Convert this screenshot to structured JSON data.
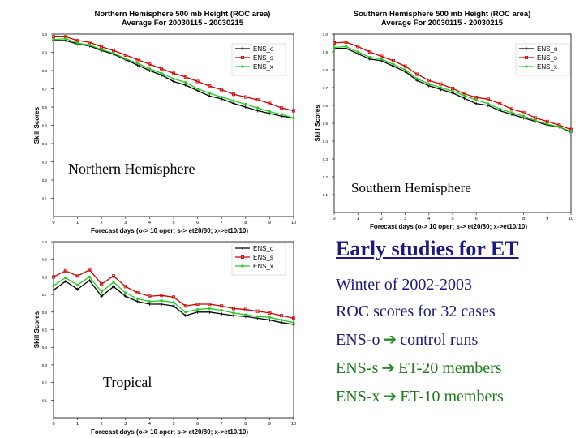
{
  "chart_data": [
    {
      "type": "line",
      "title": "Northern Hemisphere 500 mb Height (ROC area)",
      "subtitle": "Average For 20030115 - 20030215",
      "xlabel": "Forecast days (o-> 10 oper; s-> et20/80; x->et10/10)",
      "ylabel": "Skill Scores",
      "x": [
        0,
        0.5,
        1,
        1.5,
        2,
        2.5,
        3,
        3.5,
        4,
        4.5,
        5,
        5.5,
        6,
        6.5,
        7,
        7.5,
        8,
        8.5,
        9,
        9.5,
        10
      ],
      "xlim": [
        0,
        10
      ],
      "ylim": [
        0,
        1
      ],
      "xticks": [
        "0",
        "1",
        "2",
        "3",
        "4",
        "5",
        "6",
        "7",
        "8",
        "9",
        "10"
      ],
      "yticks": [
        "0.1",
        "0.2",
        "0.3",
        "0.4",
        "0.5",
        "0.6",
        "0.7",
        "0.8",
        "0.9",
        "1.0"
      ],
      "legend_position": "top-right",
      "series": [
        {
          "name": "ENS_o",
          "color": "#000000",
          "marker": "plus",
          "values": [
            0.965,
            0.965,
            0.945,
            0.935,
            0.91,
            0.89,
            0.86,
            0.83,
            0.8,
            0.775,
            0.74,
            0.72,
            0.69,
            0.66,
            0.645,
            0.62,
            0.6,
            0.58,
            0.565,
            0.55,
            0.54
          ]
        },
        {
          "name": "ENS_s",
          "color": "#cc0000",
          "marker": "square",
          "values": [
            0.985,
            0.985,
            0.965,
            0.955,
            0.93,
            0.91,
            0.885,
            0.86,
            0.835,
            0.81,
            0.785,
            0.765,
            0.74,
            0.715,
            0.695,
            0.67,
            0.655,
            0.64,
            0.62,
            0.595,
            0.58
          ]
        },
        {
          "name": "ENS_x",
          "color": "#22cc22",
          "marker": "circle",
          "values": [
            0.97,
            0.975,
            0.95,
            0.94,
            0.915,
            0.895,
            0.865,
            0.84,
            0.81,
            0.785,
            0.755,
            0.735,
            0.7,
            0.675,
            0.655,
            0.635,
            0.615,
            0.595,
            0.575,
            0.56,
            0.54
          ]
        }
      ]
    },
    {
      "type": "line",
      "title": "Southern Hemisphere 500 mb Height (ROC area)",
      "subtitle": "Average For 20030115 - 20030215",
      "xlabel": "Forecast days (o-> 10 oper; s-> et20/80; x->et10/10)",
      "ylabel": "Skill Scores",
      "x": [
        0,
        0.5,
        1,
        1.5,
        2,
        2.5,
        3,
        3.5,
        4,
        4.5,
        5,
        5.5,
        6,
        6.5,
        7,
        7.5,
        8,
        8.5,
        9,
        9.5,
        10
      ],
      "xlim": [
        0,
        10
      ],
      "ylim": [
        0,
        1
      ],
      "xticks": [
        "0",
        "1",
        "2",
        "3",
        "4",
        "5",
        "6",
        "7",
        "8",
        "9",
        "10"
      ],
      "yticks": [
        "0.1",
        "0.2",
        "0.3",
        "0.4",
        "0.5",
        "0.6",
        "0.7",
        "0.8",
        "0.9",
        "1.0"
      ],
      "legend_position": "top-right",
      "series": [
        {
          "name": "ENS_o",
          "color": "#000000",
          "marker": "plus",
          "values": [
            0.92,
            0.92,
            0.89,
            0.86,
            0.85,
            0.82,
            0.79,
            0.74,
            0.71,
            0.69,
            0.67,
            0.64,
            0.61,
            0.6,
            0.57,
            0.55,
            0.53,
            0.51,
            0.49,
            0.48,
            0.45
          ]
        },
        {
          "name": "ENS_s",
          "color": "#cc0000",
          "marker": "square",
          "values": [
            0.95,
            0.955,
            0.93,
            0.9,
            0.875,
            0.85,
            0.82,
            0.775,
            0.74,
            0.72,
            0.695,
            0.665,
            0.645,
            0.635,
            0.61,
            0.58,
            0.56,
            0.53,
            0.51,
            0.49,
            0.465
          ]
        },
        {
          "name": "ENS_x",
          "color": "#22cc22",
          "marker": "circle",
          "values": [
            0.925,
            0.93,
            0.9,
            0.87,
            0.86,
            0.83,
            0.8,
            0.75,
            0.72,
            0.7,
            0.68,
            0.655,
            0.63,
            0.61,
            0.58,
            0.56,
            0.54,
            0.515,
            0.495,
            0.48,
            0.455
          ]
        }
      ]
    },
    {
      "type": "line",
      "title": "",
      "subtitle": "",
      "xlabel": "Forecast days (o-> 10 oper; s-> et20/80; x->et10/10)",
      "ylabel": "Skill Scores",
      "x": [
        0,
        0.5,
        1,
        1.5,
        2,
        2.5,
        3,
        3.5,
        4,
        4.5,
        5,
        5.5,
        6,
        6.5,
        7,
        7.5,
        8,
        8.5,
        9,
        9.5,
        10
      ],
      "xlim": [
        0,
        10
      ],
      "ylim": [
        0,
        1
      ],
      "xticks": [
        "0",
        "1",
        "2",
        "3",
        "4",
        "5",
        "6",
        "7",
        "8",
        "9",
        "10"
      ],
      "yticks": [
        "0.1",
        "0.2",
        "0.3",
        "0.4",
        "0.5",
        "0.6",
        "0.7",
        "0.8",
        "0.9",
        "1.0"
      ],
      "legend_position": "top-right",
      "series": [
        {
          "name": "ENS_o",
          "color": "#000000",
          "marker": "plus",
          "values": [
            0.725,
            0.775,
            0.73,
            0.78,
            0.69,
            0.745,
            0.69,
            0.66,
            0.645,
            0.645,
            0.635,
            0.58,
            0.6,
            0.6,
            0.59,
            0.58,
            0.575,
            0.565,
            0.555,
            0.54,
            0.53
          ]
        },
        {
          "name": "ENS_s",
          "color": "#cc0000",
          "marker": "square",
          "values": [
            0.8,
            0.835,
            0.805,
            0.84,
            0.76,
            0.805,
            0.745,
            0.71,
            0.69,
            0.695,
            0.685,
            0.635,
            0.645,
            0.645,
            0.635,
            0.62,
            0.615,
            0.605,
            0.595,
            0.58,
            0.565
          ]
        },
        {
          "name": "ENS_x",
          "color": "#22cc22",
          "marker": "circle",
          "values": [
            0.75,
            0.795,
            0.755,
            0.8,
            0.715,
            0.77,
            0.71,
            0.675,
            0.66,
            0.665,
            0.655,
            0.6,
            0.615,
            0.62,
            0.61,
            0.595,
            0.585,
            0.575,
            0.57,
            0.555,
            0.54
          ]
        }
      ]
    }
  ],
  "labels": {
    "nh": "Northern Hemisphere",
    "sh": "Southern Hemisphere",
    "tropical": "Tropical"
  },
  "notes": {
    "title": "Early studies for ET",
    "winter": "Winter of 2002-2003",
    "roc": "ROC scores for 32 cases",
    "ens_o_name": "ENS-o",
    "ens_o_desc": "control runs",
    "ens_s_name": "ENS-s",
    "ens_s_desc": "ET-20 members",
    "ens_x_name": "ENS-x",
    "ens_x_desc": "ET-10 members"
  }
}
